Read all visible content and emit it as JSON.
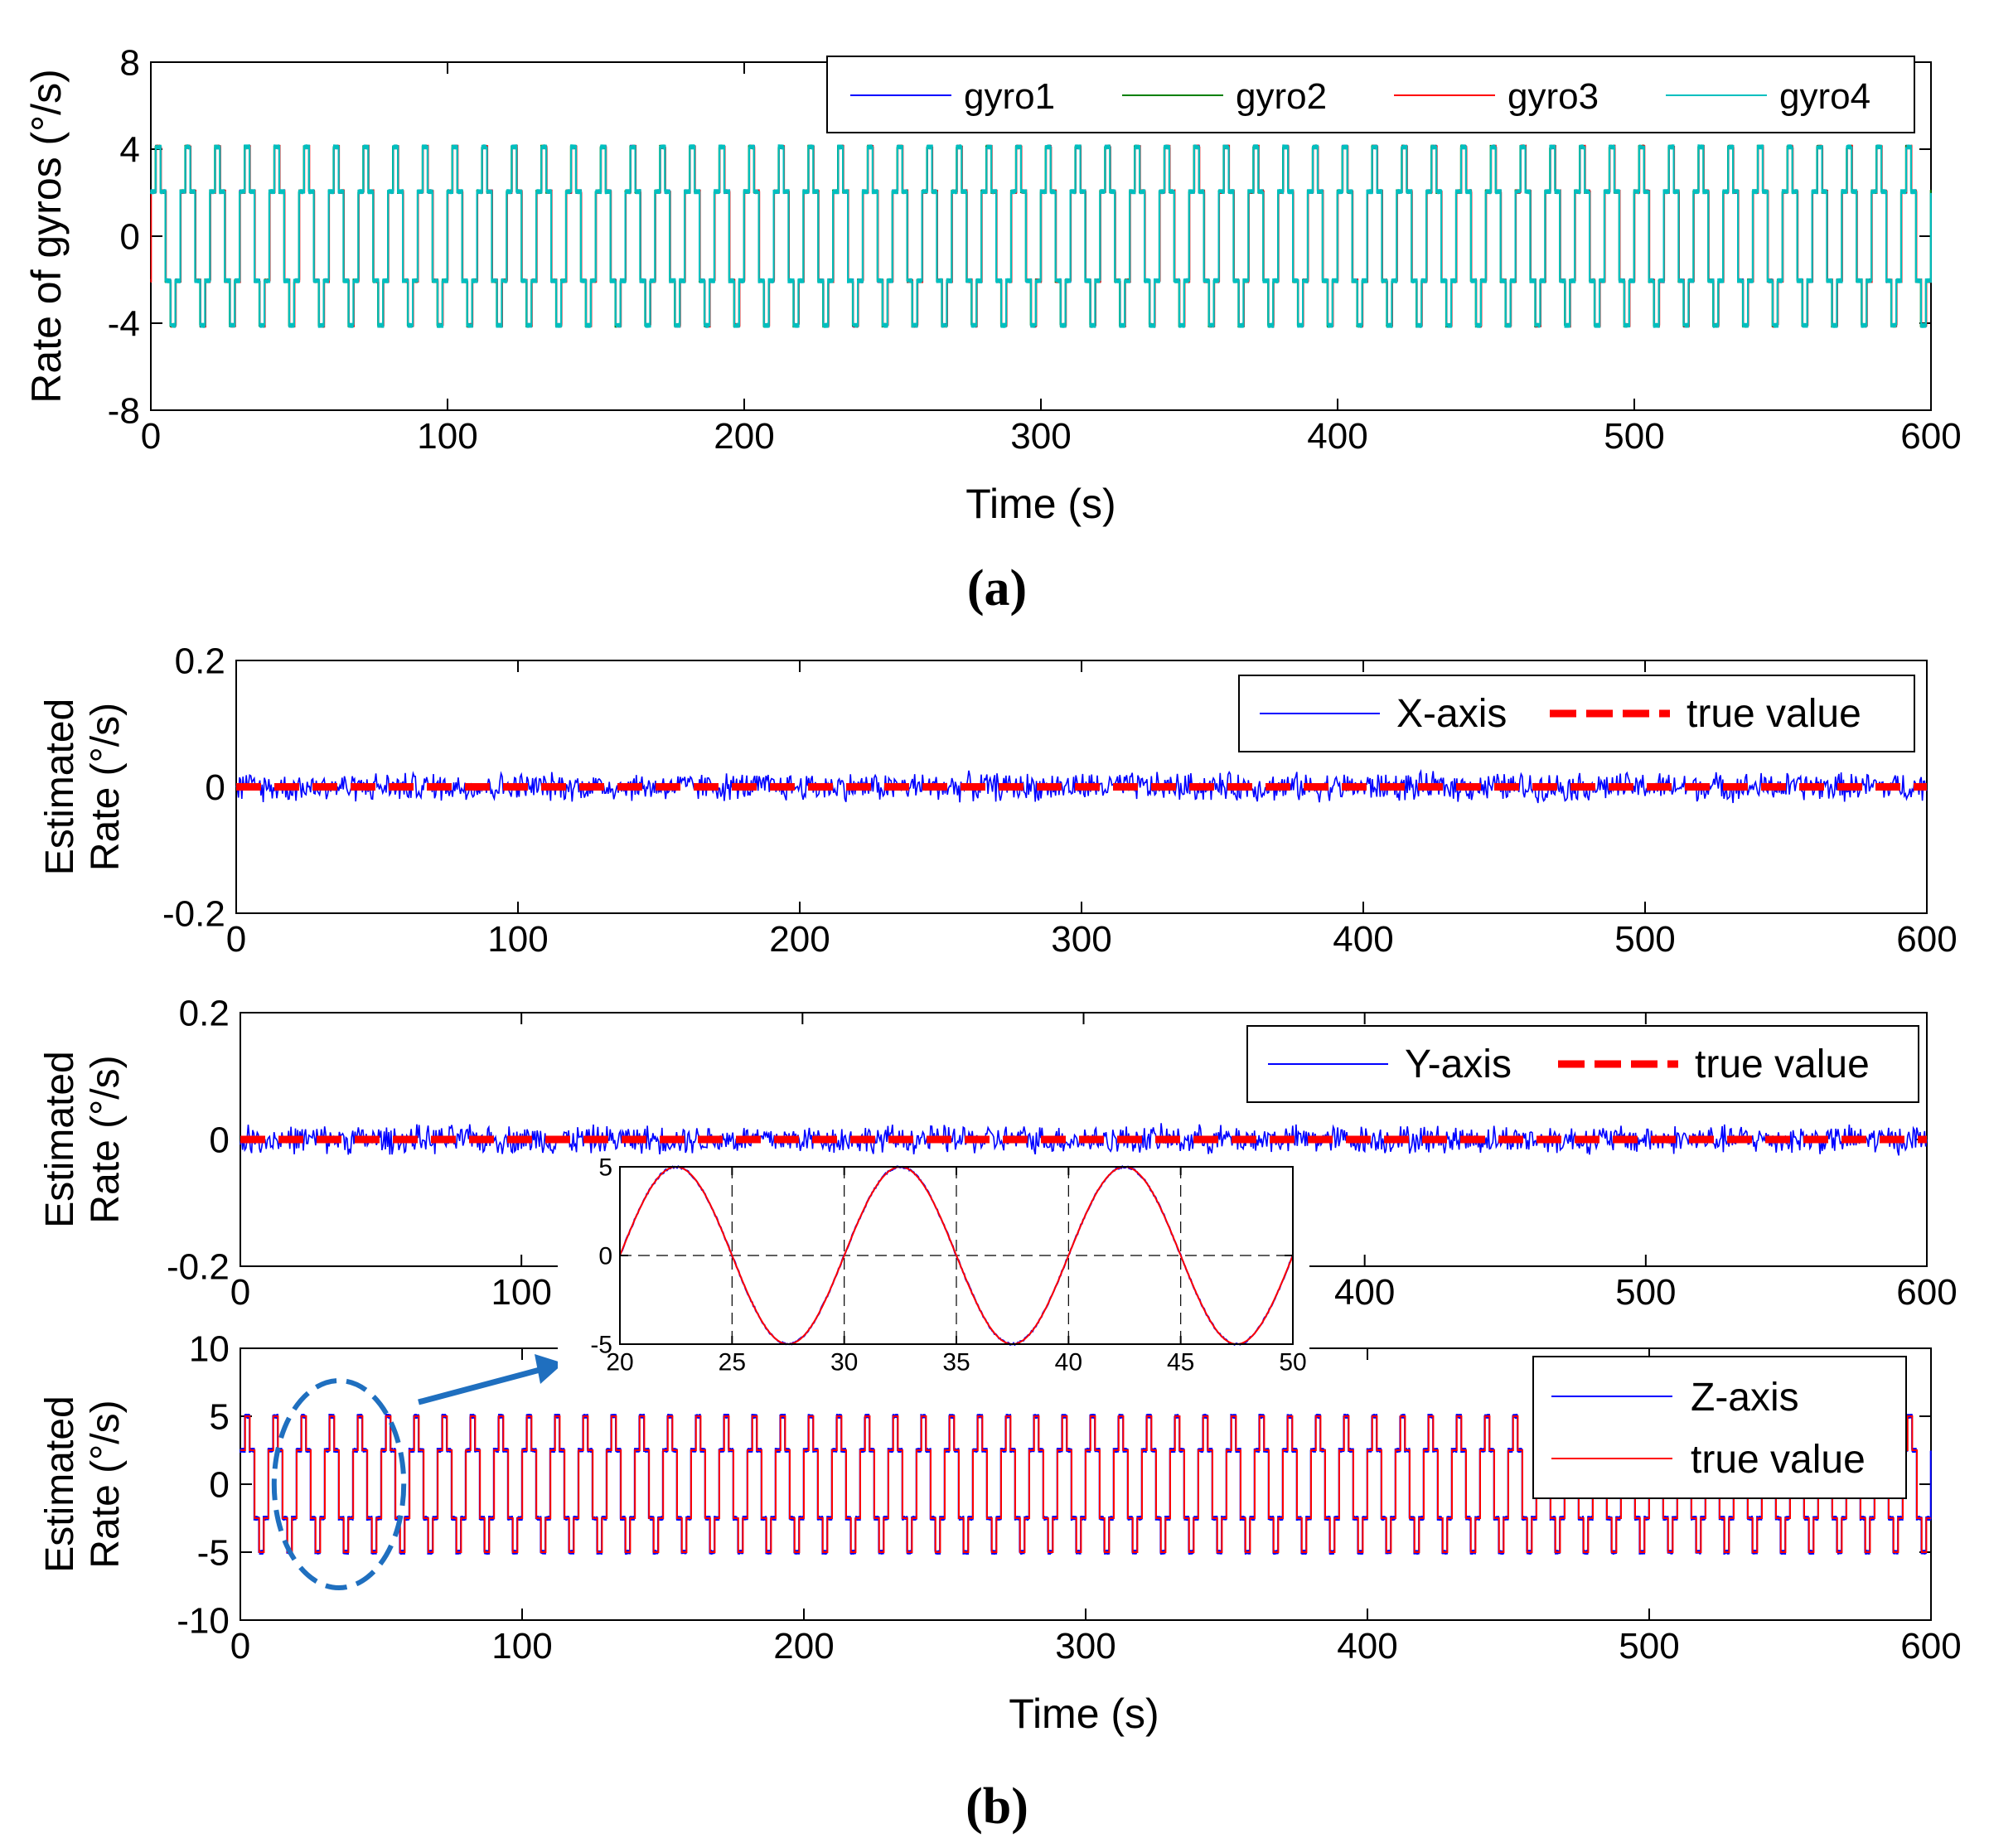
{
  "colors": {
    "gyro1": "#0000ff",
    "gyro2": "#008000",
    "gyro3": "#ff0000",
    "gyro4": "#00bfbf",
    "estimate": "#0000ff",
    "true_value": "#ff0000",
    "inset_grid": "#000000",
    "callout": "#1f6fbf"
  },
  "panel_labels": {
    "a": "(a)",
    "b": "(b)"
  },
  "chart_data": [
    {
      "id": "a",
      "type": "line",
      "title": "",
      "xlabel": "Time (s)",
      "ylabel": "Rate of gyros (°/s)",
      "xlim": [
        0,
        600
      ],
      "ylim": [
        -8,
        8
      ],
      "xticks": [
        "0",
        "100",
        "200",
        "300",
        "400",
        "500",
        "600"
      ],
      "yticks": [
        "8",
        "4",
        "0",
        "-4",
        "-8"
      ],
      "signal": {
        "shape": "stepped-sine",
        "amplitude": 4.1,
        "period_s": 10,
        "steps_per_half_period": 3
      },
      "legend": {
        "position": "top-right",
        "orientation": "horizontal"
      },
      "series": [
        {
          "name": "gyro1",
          "color": "#0000ff"
        },
        {
          "name": "gyro2",
          "color": "#008000"
        },
        {
          "name": "gyro3",
          "color": "#ff0000"
        },
        {
          "name": "gyro4",
          "color": "#00bfbf"
        }
      ]
    },
    {
      "id": "b-x",
      "type": "line",
      "xlabel": "",
      "ylabel": [
        "Estimated",
        "Rate (°/s)"
      ],
      "xlim": [
        0,
        600
      ],
      "ylim": [
        -0.2,
        0.2
      ],
      "xticks": [
        "0",
        "100",
        "200",
        "300",
        "400",
        "500",
        "600"
      ],
      "yticks": [
        "0.2",
        "0",
        "-0.2"
      ],
      "noise_amplitude": 0.02,
      "legend": {
        "position": "top-right",
        "orientation": "horizontal"
      },
      "series": [
        {
          "name": "X-axis",
          "color": "#0000ff",
          "style": "solid-thin"
        },
        {
          "name": "true value",
          "color": "#ff0000",
          "style": "dashed-thick",
          "value": 0
        }
      ]
    },
    {
      "id": "b-y",
      "type": "line",
      "xlabel": "",
      "ylabel": [
        "Estimated",
        "Rate (°/s)"
      ],
      "xlim": [
        0,
        600
      ],
      "ylim": [
        -0.2,
        0.2
      ],
      "xticks": [
        "0",
        "100",
        "200",
        "300",
        "400",
        "500",
        "600"
      ],
      "yticks": [
        "0.2",
        "0",
        "-0.2"
      ],
      "noise_amplitude": 0.02,
      "legend": {
        "position": "top-right",
        "orientation": "horizontal"
      },
      "series": [
        {
          "name": "Y-axis",
          "color": "#0000ff",
          "style": "solid-thin"
        },
        {
          "name": "true value",
          "color": "#ff0000",
          "style": "dashed-thick",
          "value": 0
        }
      ]
    },
    {
      "id": "b-z",
      "type": "line",
      "xlabel": "Time (s)",
      "ylabel": [
        "Estimated",
        "Rate (°/s)"
      ],
      "xlim": [
        0,
        600
      ],
      "ylim": [
        -10,
        10
      ],
      "xticks": [
        "0",
        "100",
        "200",
        "300",
        "400",
        "500",
        "600"
      ],
      "yticks": [
        "10",
        "5",
        "0",
        "-5",
        "-10"
      ],
      "signal": {
        "shape": "stepped-sine",
        "amplitude": 5,
        "period_s": 10,
        "steps_per_half_period": 3
      },
      "legend": {
        "position": "top-right",
        "orientation": "vertical"
      },
      "series": [
        {
          "name": "Z-axis",
          "color": "#0000ff"
        },
        {
          "name": "true value",
          "color": "#ff0000"
        }
      ],
      "callout": {
        "highlight_x_range": [
          12,
          58
        ]
      }
    },
    {
      "id": "inset",
      "type": "line",
      "xlim": [
        20,
        50
      ],
      "ylim": [
        -5,
        5
      ],
      "xticks": [
        "20",
        "25",
        "30",
        "35",
        "40",
        "45",
        "50"
      ],
      "yticks": [
        "5",
        "0",
        "-5"
      ],
      "grid": true,
      "signal": {
        "shape": "sine",
        "amplitude": 5,
        "period_s": 10
      },
      "series": [
        {
          "name": "Z-axis",
          "color": "#0000ff"
        },
        {
          "name": "true value",
          "color": "#ff0000"
        }
      ]
    }
  ]
}
